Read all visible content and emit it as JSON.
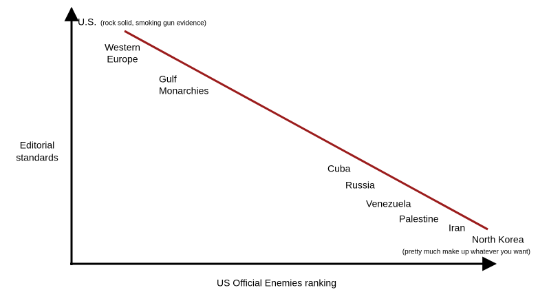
{
  "y_axis": {
    "lines": [
      "Editorial",
      "standards"
    ]
  },
  "x_axis": {
    "label": "US Official Enemies ranking"
  },
  "top": {
    "label": "U.S.",
    "note": "(rock solid, smoking gun evidence)"
  },
  "bottom": {
    "label": "North Korea",
    "note": "(pretty much make up whatever you want)"
  },
  "groups": [
    {
      "lines": [
        "Western",
        "Europe"
      ]
    },
    {
      "lines": [
        "Gulf",
        "Monarchies"
      ]
    },
    {
      "lines": [
        "Cuba"
      ]
    },
    {
      "lines": [
        "Russia"
      ]
    },
    {
      "lines": [
        "Venezuela"
      ]
    },
    {
      "lines": [
        "Palestine"
      ]
    },
    {
      "lines": [
        "Iran"
      ]
    }
  ]
}
